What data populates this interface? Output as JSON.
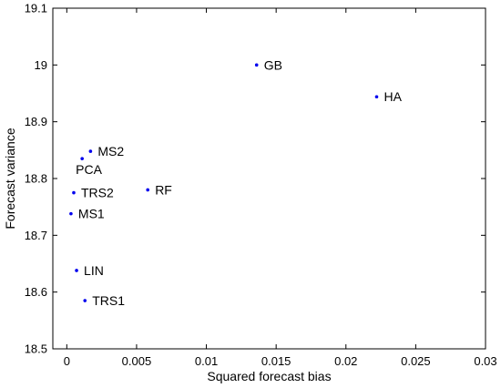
{
  "chart_data": {
    "type": "scatter",
    "title": "",
    "xlabel": "Squared forecast bias",
    "ylabel": "Forecast variance",
    "xlim": [
      -0.001,
      0.03
    ],
    "ylim": [
      18.5,
      19.1
    ],
    "xticks": [
      0,
      0.005,
      0.01,
      0.015,
      0.02,
      0.025,
      0.03
    ],
    "xtick_labels": [
      "0",
      "0.005",
      "0.01",
      "0.015",
      "0.02",
      "0.025",
      "0.03"
    ],
    "yticks": [
      18.5,
      18.6,
      18.7,
      18.8,
      18.9,
      19.0,
      19.1
    ],
    "ytick_labels": [
      "18.5",
      "18.6",
      "18.7",
      "18.8",
      "18.9",
      "19",
      "19.1"
    ],
    "grid": false,
    "marker_color": "#0000ee",
    "points": [
      {
        "label": "GB",
        "x": 0.0136,
        "y": 19.0,
        "label_pos": "right"
      },
      {
        "label": "HA",
        "x": 0.0222,
        "y": 18.944,
        "label_pos": "right"
      },
      {
        "label": "MS2",
        "x": 0.0017,
        "y": 18.848,
        "label_pos": "right"
      },
      {
        "label": "PCA",
        "x": 0.0011,
        "y": 18.835,
        "label_pos": "below"
      },
      {
        "label": "TRS2",
        "x": 0.0005,
        "y": 18.775,
        "label_pos": "right"
      },
      {
        "label": "RF",
        "x": 0.0058,
        "y": 18.78,
        "label_pos": "right"
      },
      {
        "label": "MS1",
        "x": 0.0003,
        "y": 18.738,
        "label_pos": "right"
      },
      {
        "label": "LIN",
        "x": 0.0007,
        "y": 18.638,
        "label_pos": "right"
      },
      {
        "label": "TRS1",
        "x": 0.0013,
        "y": 18.585,
        "label_pos": "right"
      }
    ]
  }
}
